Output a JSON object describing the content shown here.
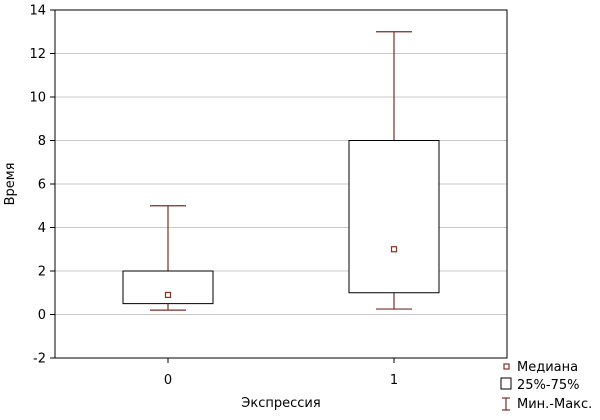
{
  "chart_data": {
    "type": "boxplot",
    "xlabel": "Экспрессия",
    "ylabel": "Время",
    "ylim": [
      -2,
      14
    ],
    "yticks": [
      -2,
      0,
      2,
      4,
      6,
      8,
      10,
      12,
      14
    ],
    "grid": true,
    "legend_position": "bottom-right",
    "categories": [
      "0",
      "1"
    ],
    "boxes": [
      {
        "category": "0",
        "min": 0.2,
        "q1": 0.5,
        "median": 0.9,
        "q3": 2.0,
        "max": 5.0
      },
      {
        "category": "1",
        "min": 0.25,
        "q1": 1.0,
        "median": 3.0,
        "q3": 8.0,
        "max": 13.0
      }
    ],
    "legend": {
      "median": "Медиана",
      "box": "25%-75%",
      "whisker": "Мин.-Макс."
    },
    "colors": {
      "median_marker": "#8b2d1f",
      "whisker": "#7a2e26",
      "box": "#000000",
      "grid": "#c8c8c8"
    }
  }
}
